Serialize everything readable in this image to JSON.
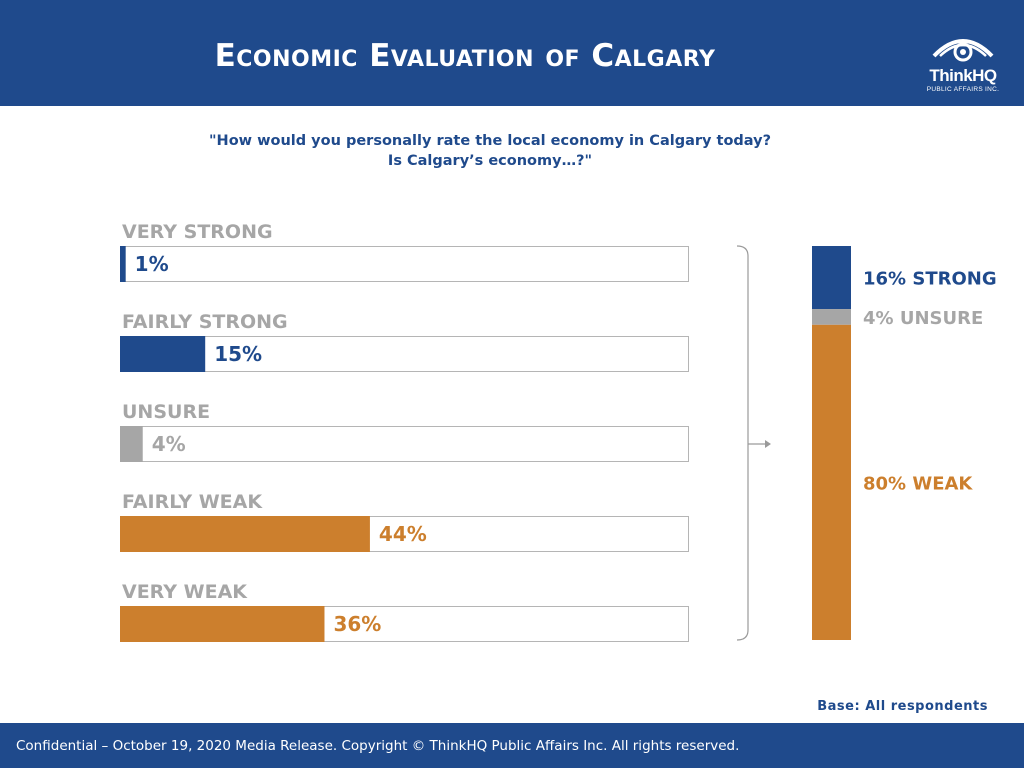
{
  "header": {
    "title": "Economic Evaluation of Calgary"
  },
  "logo": {
    "name": "ThinkHQ",
    "subtitle": "PUBLIC AFFAIRS INC.",
    "icon": "eye-swirl-icon"
  },
  "question": {
    "line1": "\"How would you personally rate the local economy in Calgary today?",
    "line2": "Is Calgary’s economy…?\""
  },
  "chart_data": [
    {
      "type": "bar",
      "orientation": "horizontal",
      "categories": [
        "VERY STRONG",
        "FAIRLY STRONG",
        "UNSURE",
        "FAIRLY WEAK",
        "VERY WEAK"
      ],
      "values": [
        1,
        15,
        4,
        44,
        36
      ],
      "value_labels": [
        "1%",
        "15%",
        "4%",
        "44%",
        "36%"
      ],
      "unit": "%",
      "xlim": [
        0,
        100
      ],
      "colors": [
        "#1f4a8c",
        "#1f4a8c",
        "#a6a6a6",
        "#cc7f2d",
        "#cc7f2d"
      ],
      "label_colors": [
        "#a6a6a6",
        "#a6a6a6",
        "#a6a6a6",
        "#a6a6a6",
        "#a6a6a6"
      ],
      "grid": false
    },
    {
      "type": "bar",
      "orientation": "vertical-stacked",
      "series": [
        {
          "name": "STRONG",
          "value": 16,
          "label": "16% STRONG",
          "color": "#1f4a8c"
        },
        {
          "name": "UNSURE",
          "value": 4,
          "label": "4% UNSURE",
          "color": "#a6a6a6"
        },
        {
          "name": "WEAK",
          "value": 80,
          "label": "80% WEAK",
          "color": "#cc7f2d"
        }
      ],
      "ylim": [
        0,
        100
      ]
    }
  ],
  "footer": {
    "base": "Base: All respondents",
    "text": "Confidential – October 19, 2020 Media Release. Copyright © ThinkHQ Public Affairs Inc. All rights reserved."
  }
}
